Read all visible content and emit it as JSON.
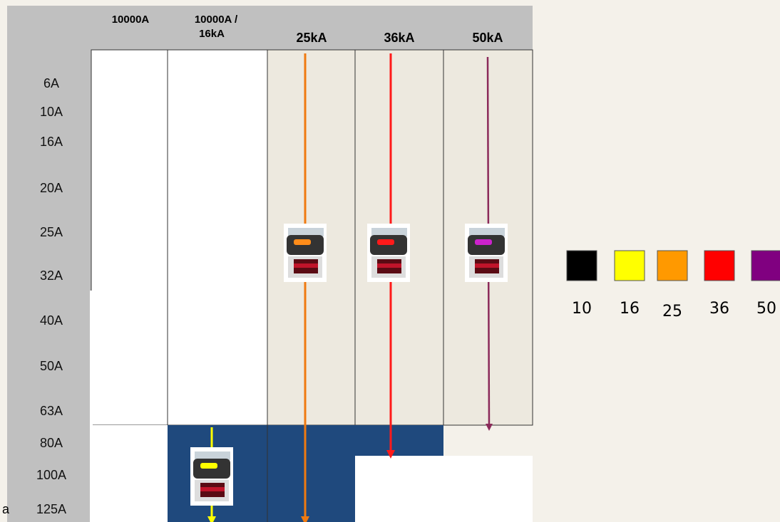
{
  "columns": [
    "10000A",
    "10000A / 16kA",
    "25kA",
    "36kA",
    "50kA"
  ],
  "rows": [
    "6A",
    "10A",
    "16A",
    "20A",
    "25A",
    "32A",
    "40A",
    "50A",
    "63A",
    "80A",
    "100A",
    "125A"
  ],
  "side_text": "a",
  "legend": [
    "10",
    "16",
    "25",
    "36",
    "50"
  ]
}
